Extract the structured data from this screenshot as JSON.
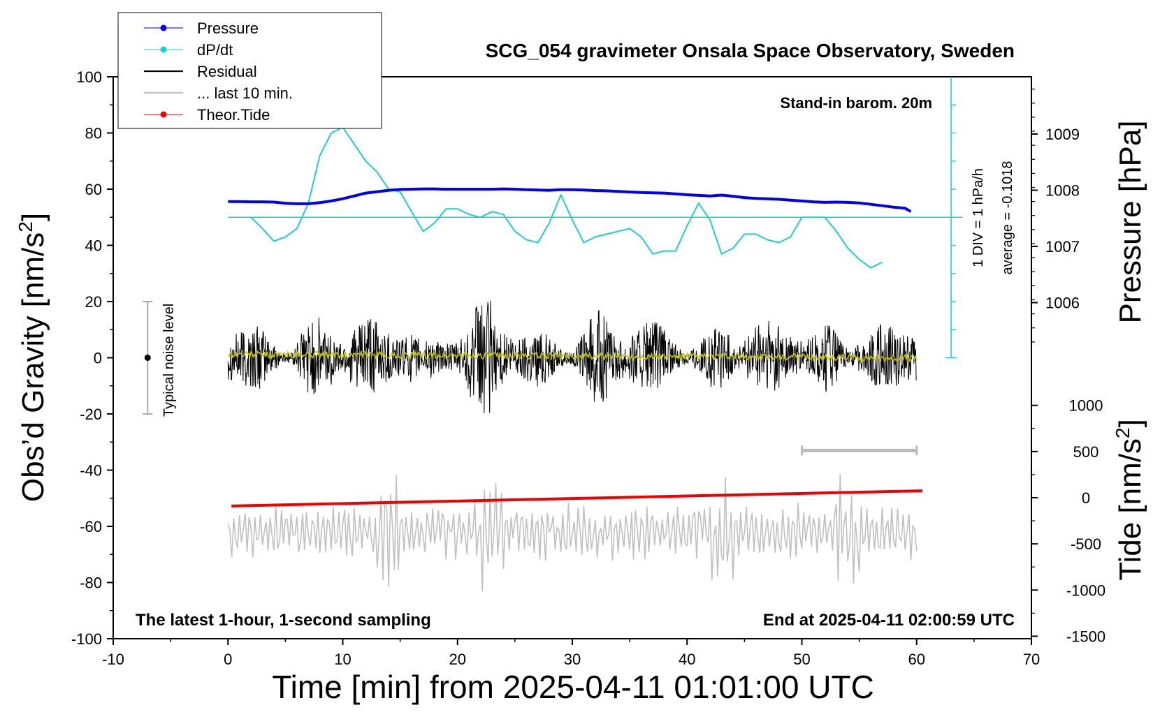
{
  "chart_data": {
    "type": "line",
    "title": "SCG_054 gravimeter Onsala Space Observatory, Sweden",
    "xlabel": "Time [min] from 2025-04-11 01:01:00 UTC",
    "ylabel_left": "Obs’d Gravity [nm/s²]",
    "ylabel_right_top": "Pressure [hPa]",
    "ylabel_right_bottom": "Tide [nm/s²]",
    "ylabel_left_text": "Obs’d Gravity [nm/s",
    "ylabel_left_sup": "2",
    "ylabel_left_close": "]",
    "ylabel_tide_text": "Tide [nm/s",
    "ylabel_tide_sup": "2",
    "ylabel_tide_close": "]",
    "xlim": [
      -10,
      70
    ],
    "ylim": [
      -100,
      100
    ],
    "x_ticks": [
      "-10",
      "0",
      "10",
      "20",
      "30",
      "40",
      "50",
      "60",
      "70"
    ],
    "y_ticks": [
      "-100",
      "-80",
      "-60",
      "-40",
      "-20",
      "0",
      "20",
      "40",
      "60",
      "80",
      "100"
    ],
    "pressure_ticks": [
      "1006",
      "1007",
      "1008",
      "1009"
    ],
    "pressure_tick_values": [
      1006,
      1007,
      1008,
      1009
    ],
    "tide_ticks": [
      "1000",
      "500",
      "0",
      "-500",
      "-1000",
      "-1500"
    ],
    "tide_tick_values": [
      1000,
      500,
      0,
      -500,
      -1000,
      -1500
    ],
    "legend": [
      "Pressure",
      "dP/dt",
      "Residual",
      "... last 10 min.",
      "Theor.Tide"
    ],
    "legend_position": "top-left",
    "annotations": {
      "barometer": "Stand-in barom. 20m",
      "div": "1 DIV = 1 hPa/h",
      "average": "average = -0.1018",
      "noise": "Typical noise level",
      "bottom_left": "The latest 1-hour, 1-second sampling",
      "bottom_right": "End at 2025-04-11 02:00:59 UTC"
    },
    "noise_bar": {
      "x": -7,
      "center": 0,
      "half_range": 20
    },
    "last10_bar": {
      "x_start": 50,
      "x_end": 60,
      "y": -33
    },
    "dpdt_baseline_y": 50,
    "dpdt_scale_x": 63,
    "dpdt_scale_y_range": [
      0,
      100
    ],
    "series": [
      {
        "name": "Pressure",
        "color": "#0000ee",
        "x": [
          0,
          1,
          2,
          3,
          4,
          5,
          6,
          7,
          8,
          9,
          10,
          11,
          12,
          13,
          14,
          15,
          16,
          17,
          18,
          19,
          20,
          21,
          22,
          23,
          24,
          25,
          26,
          27,
          28,
          29,
          30,
          31,
          32,
          33,
          34,
          35,
          36,
          37,
          38,
          39,
          40,
          41,
          42,
          43,
          44,
          45,
          46,
          47,
          48,
          49,
          50,
          51,
          52,
          53,
          54,
          55,
          56,
          57,
          58,
          59,
          59.5
        ],
        "values": [
          55.6,
          55.6,
          55.5,
          55.5,
          55.4,
          55.0,
          54.8,
          54.8,
          55.2,
          55.8,
          56.6,
          57.6,
          58.6,
          59.1,
          59.6,
          59.9,
          60.0,
          60.1,
          60.1,
          60.0,
          60.0,
          60.0,
          60.0,
          60.0,
          60.1,
          60.0,
          59.8,
          59.7,
          59.6,
          59.8,
          59.8,
          59.7,
          59.5,
          59.4,
          59.2,
          59.0,
          58.8,
          58.7,
          58.6,
          58.3,
          58.0,
          57.8,
          57.6,
          57.9,
          57.5,
          57.0,
          56.7,
          56.6,
          56.4,
          56.1,
          55.8,
          55.5,
          55.3,
          55.4,
          55.3,
          55.1,
          54.6,
          54.1,
          53.6,
          53.2,
          52.0
        ]
      },
      {
        "name": "dP/dt",
        "color": "#22cccc",
        "x": [
          2,
          3,
          4,
          5,
          6,
          7,
          8,
          9,
          10,
          11,
          12,
          13,
          14,
          15,
          16,
          17,
          18,
          19,
          20,
          21,
          22,
          23,
          24,
          25,
          26,
          27,
          28,
          29,
          30,
          31,
          32,
          33,
          34,
          35,
          36,
          37,
          38,
          39,
          40,
          41,
          42,
          43,
          44,
          45,
          46,
          47,
          48,
          49,
          50,
          51,
          52,
          53,
          54,
          55,
          56,
          57
        ],
        "values": [
          50,
          46,
          41.5,
          43,
          46,
          55,
          72,
          80,
          82,
          76,
          70,
          66,
          60,
          59,
          52,
          45,
          48,
          53,
          53,
          51,
          50,
          52,
          51,
          45,
          42,
          41,
          48,
          58,
          49,
          41,
          43,
          44,
          45,
          46,
          43,
          37,
          38,
          38,
          47,
          55,
          49,
          37,
          39,
          44,
          44,
          42,
          41,
          43,
          50,
          50,
          50,
          45,
          39,
          35,
          32,
          34
        ]
      },
      {
        "name": "Residual",
        "color": "#000000",
        "x": [
          0,
          60
        ],
        "amplitude": 12,
        "bursts": [
          [
            6,
            9
          ],
          [
            14,
            16
          ],
          [
            19,
            23
          ],
          [
            29,
            33
          ],
          [
            42,
            44
          ],
          [
            52,
            55
          ]
        ]
      },
      {
        "name": "Residual mean",
        "color": "#c8c800",
        "x": [
          0,
          60
        ],
        "values": [
          1.2,
          0
        ]
      },
      {
        "name": "... last 10 min.",
        "color": "#c0c0c0",
        "x": [
          0,
          60
        ],
        "center": -62,
        "amplitude": 8,
        "bursts": [
          [
            13,
            15
          ],
          [
            22,
            24
          ],
          [
            42,
            44
          ],
          [
            53,
            55
          ]
        ]
      },
      {
        "name": "Theor.Tide",
        "color": "#ee0000",
        "x": [
          0.3,
          60.5
        ],
        "tide_values": [
          -90,
          75
        ]
      }
    ]
  }
}
